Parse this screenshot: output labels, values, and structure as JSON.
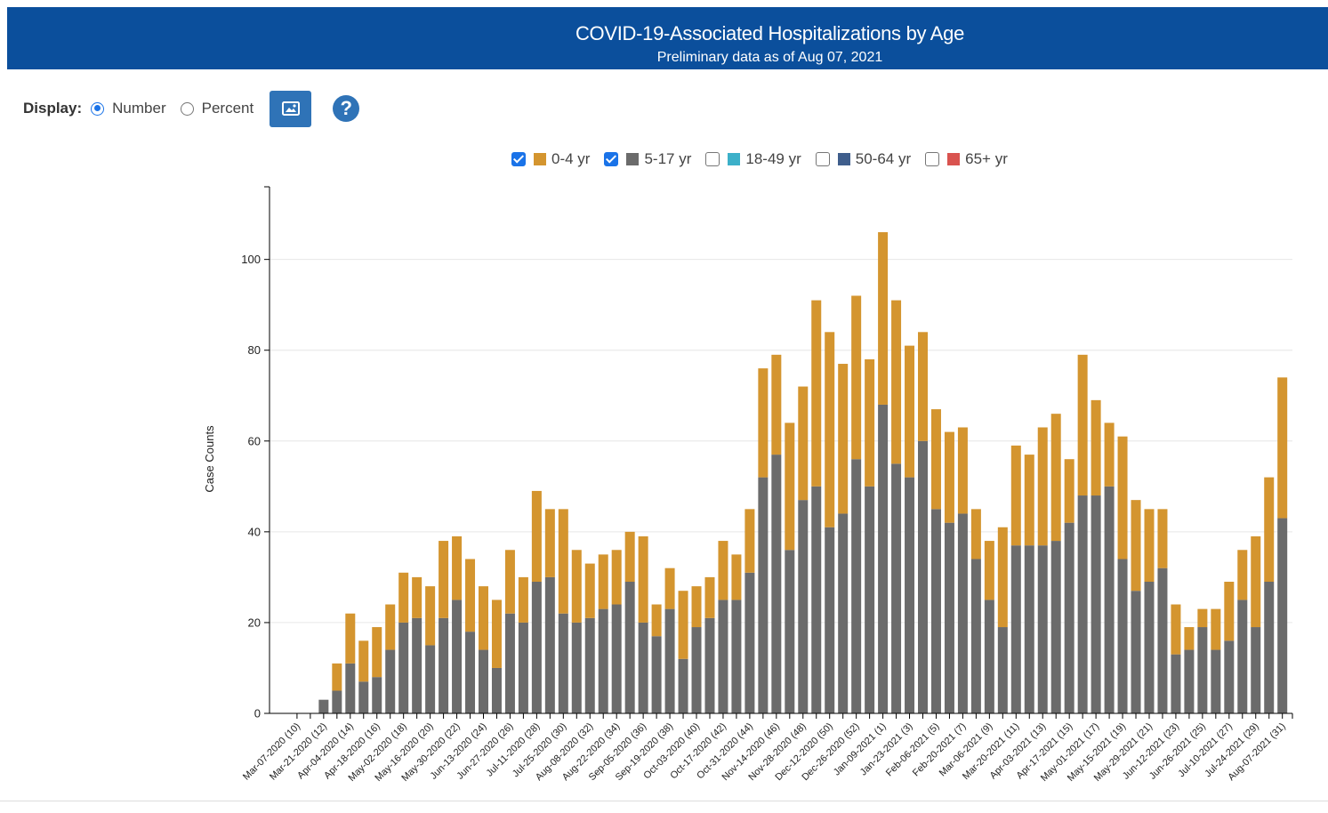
{
  "header": {
    "title": "COVID-19-Associated Hospitalizations by Age",
    "subtitle": "Preliminary data as of Aug 07, 2021"
  },
  "controls": {
    "display_label": "Display:",
    "options": [
      {
        "label": "Number",
        "checked": true
      },
      {
        "label": "Percent",
        "checked": false
      }
    ],
    "image_button_icon": "image-icon",
    "help_icon": "help-icon"
  },
  "legend": [
    {
      "label": "0-4 yr",
      "checked": true,
      "color": "#d4952f"
    },
    {
      "label": "5-17 yr",
      "checked": true,
      "color": "#6b6b6b"
    },
    {
      "label": "18-49 yr",
      "checked": false,
      "color": "#3cb0c9"
    },
    {
      "label": "50-64 yr",
      "checked": false,
      "color": "#3f5e8c"
    },
    {
      "label": "65+ yr",
      "checked": false,
      "color": "#d9534f"
    }
  ],
  "chart_data": {
    "type": "bar",
    "stacked": true,
    "ylabel": "Case Counts",
    "xlabel": "",
    "ylim": [
      0,
      116
    ],
    "yticks": [
      0,
      20,
      40,
      60,
      80,
      100
    ],
    "grid": true,
    "legend_position": "top",
    "categories": [
      "Mar-07-2020 (10)",
      "",
      "Mar-21-2020 (12)",
      "",
      "Apr-04-2020 (14)",
      "",
      "Apr-18-2020 (16)",
      "",
      "May-02-2020 (18)",
      "",
      "May-16-2020 (20)",
      "",
      "May-30-2020 (22)",
      "",
      "Jun-13-2020 (24)",
      "",
      "Jun-27-2020 (26)",
      "",
      "Jul-11-2020 (28)",
      "",
      "Jul-25-2020 (30)",
      "",
      "Aug-08-2020 (32)",
      "",
      "Aug-22-2020 (34)",
      "",
      "Sep-05-2020 (36)",
      "",
      "Sep-19-2020 (38)",
      "",
      "Oct-03-2020 (40)",
      "",
      "Oct-17-2020 (42)",
      "",
      "Oct-31-2020 (44)",
      "",
      "Nov-14-2020 (46)",
      "",
      "Nov-28-2020 (48)",
      "",
      "Dec-12-2020 (50)",
      "",
      "Dec-26-2020 (52)",
      "",
      "Jan-09-2021 (1)",
      "",
      "Jan-23-2021 (3)",
      "",
      "Feb-06-2021 (5)",
      "",
      "Feb-20-2021 (7)",
      "",
      "Mar-06-2021 (9)",
      "",
      "Mar-20-2021 (11)",
      "",
      "Apr-03-2021 (13)",
      "",
      "Apr-17-2021 (15)",
      "",
      "May-01-2021 (17)",
      "",
      "May-15-2021 (19)",
      "",
      "May-29-2021 (21)",
      "",
      "Jun-12-2021 (23)",
      "",
      "Jun-26-2021 (25)",
      "",
      "Jul-10-2021 (27)",
      "",
      "Jul-24-2021 (29)",
      "",
      "Aug-07-2021 (31)"
    ],
    "series": [
      {
        "name": "5-17 yr",
        "color": "#6b6b6b",
        "values": [
          0,
          0,
          3,
          5,
          11,
          7,
          8,
          14,
          20,
          21,
          15,
          21,
          25,
          18,
          14,
          10,
          22,
          20,
          29,
          30,
          22,
          20,
          21,
          23,
          24,
          29,
          20,
          17,
          23,
          12,
          19,
          21,
          25,
          25,
          31,
          52,
          57,
          36,
          47,
          50,
          41,
          44,
          56,
          50,
          68,
          55,
          52,
          60,
          45,
          42,
          44,
          34,
          25,
          19,
          37,
          37,
          37,
          38,
          42,
          48,
          48,
          50,
          34,
          27,
          29,
          32,
          13,
          14,
          19,
          14,
          16,
          25,
          19,
          29,
          43
        ]
      },
      {
        "name": "0-4 yr",
        "color": "#d4952f",
        "values": [
          0,
          0,
          0,
          6,
          11,
          9,
          11,
          10,
          11,
          9,
          13,
          17,
          14,
          16,
          14,
          15,
          14,
          10,
          20,
          15,
          23,
          16,
          12,
          12,
          12,
          11,
          19,
          7,
          9,
          15,
          9,
          9,
          13,
          10,
          14,
          24,
          22,
          28,
          25,
          41,
          43,
          33,
          36,
          28,
          38,
          36,
          29,
          24,
          22,
          20,
          19,
          11,
          13,
          22,
          22,
          20,
          26,
          28,
          14,
          31,
          21,
          14,
          27,
          20,
          16,
          13,
          11,
          5,
          4,
          9,
          13,
          11,
          20,
          23,
          31
        ]
      }
    ]
  }
}
